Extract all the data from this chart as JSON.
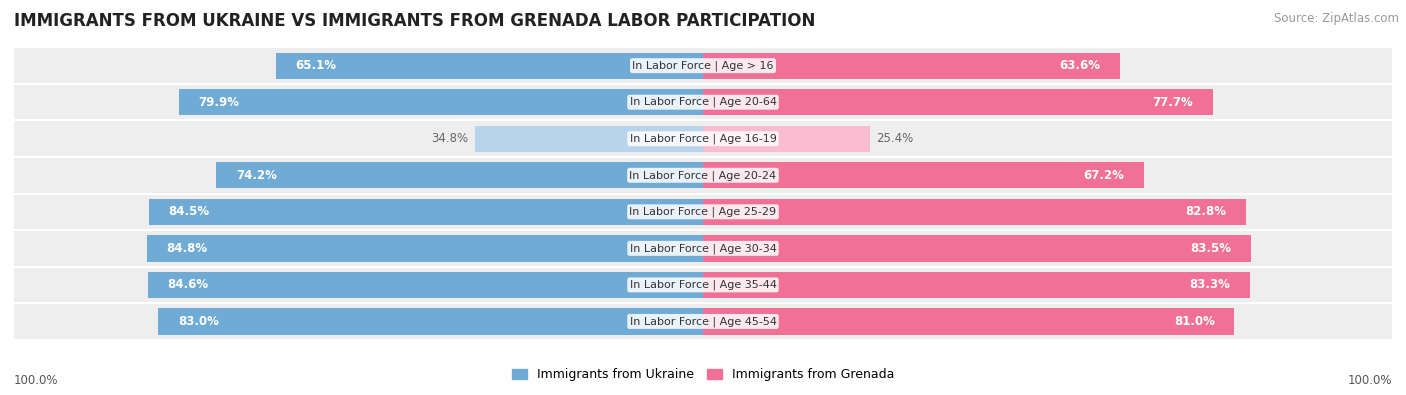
{
  "title": "IMMIGRANTS FROM UKRAINE VS IMMIGRANTS FROM GRENADA LABOR PARTICIPATION",
  "source": "Source: ZipAtlas.com",
  "categories": [
    "In Labor Force | Age > 16",
    "In Labor Force | Age 20-64",
    "In Labor Force | Age 16-19",
    "In Labor Force | Age 20-24",
    "In Labor Force | Age 25-29",
    "In Labor Force | Age 30-34",
    "In Labor Force | Age 35-44",
    "In Labor Force | Age 45-54"
  ],
  "ukraine_values": [
    65.1,
    79.9,
    34.8,
    74.2,
    84.5,
    84.8,
    84.6,
    83.0
  ],
  "grenada_values": [
    63.6,
    77.7,
    25.4,
    67.2,
    82.8,
    83.5,
    83.3,
    81.0
  ],
  "ukraine_color": "#6fabd4",
  "ukraine_color_light": "#b8d4eb",
  "grenada_color": "#f07098",
  "grenada_color_light": "#f9bcd0",
  "row_bg_even": "#efefef",
  "row_bg_odd": "#e8e8e8",
  "row_bg": "#eeeeee",
  "label_color_white": "#ffffff",
  "label_color_dark": "#666666",
  "max_value": 100.0,
  "legend_ukraine": "Immigrants from Ukraine",
  "legend_grenada": "Immigrants from Grenada",
  "axis_label": "100.0%",
  "title_fontsize": 12,
  "source_fontsize": 8.5,
  "bar_label_fontsize": 8.5,
  "category_fontsize": 8,
  "legend_fontsize": 9,
  "small_threshold": 45
}
